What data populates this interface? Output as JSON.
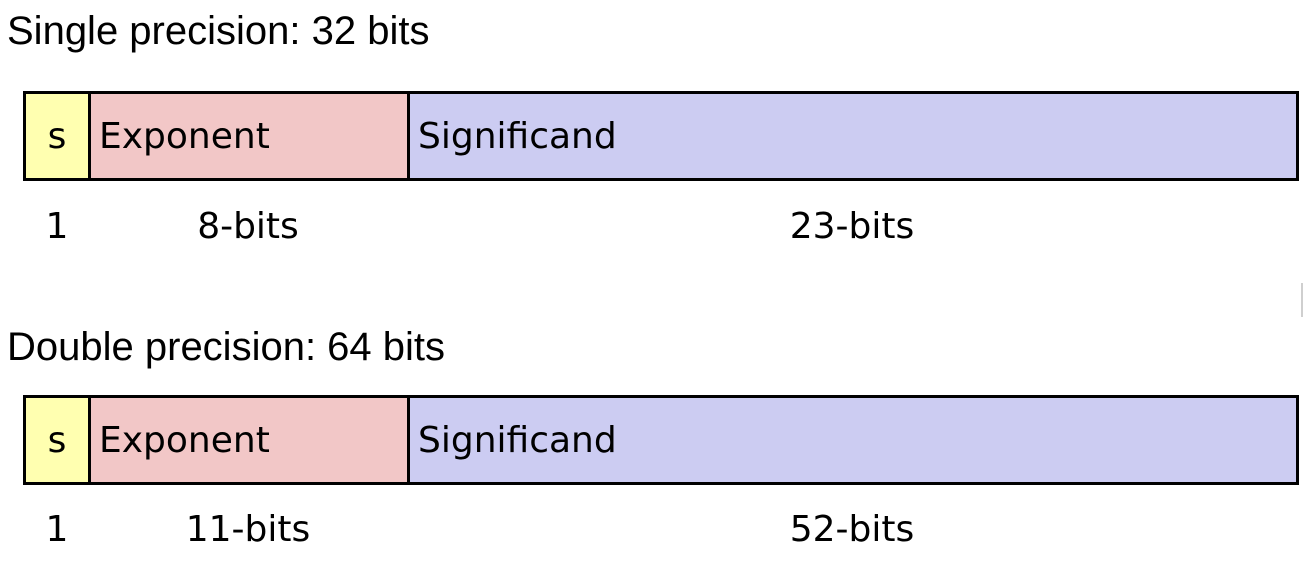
{
  "formats": [
    {
      "heading": "Single precision: 32 bits",
      "fields": {
        "sign": "s",
        "exponent": "Exponent",
        "significand": "Significand"
      },
      "widths": {
        "sign": "1",
        "exponent": "8-bits",
        "significand": "23-bits"
      },
      "colors": {
        "sign": "#FFFFB0",
        "exponent": "#F2C7C7",
        "significand": "#CCCCF2"
      }
    },
    {
      "heading": "Double precision: 64 bits",
      "fields": {
        "sign": "s",
        "exponent": "Exponent",
        "significand": "Significand"
      },
      "widths": {
        "sign": "1",
        "exponent": "11-bits",
        "significand": "52-bits"
      },
      "colors": {
        "sign": "#FFFFB0",
        "exponent": "#F2C7C7",
        "significand": "#CCCCF2"
      }
    }
  ]
}
